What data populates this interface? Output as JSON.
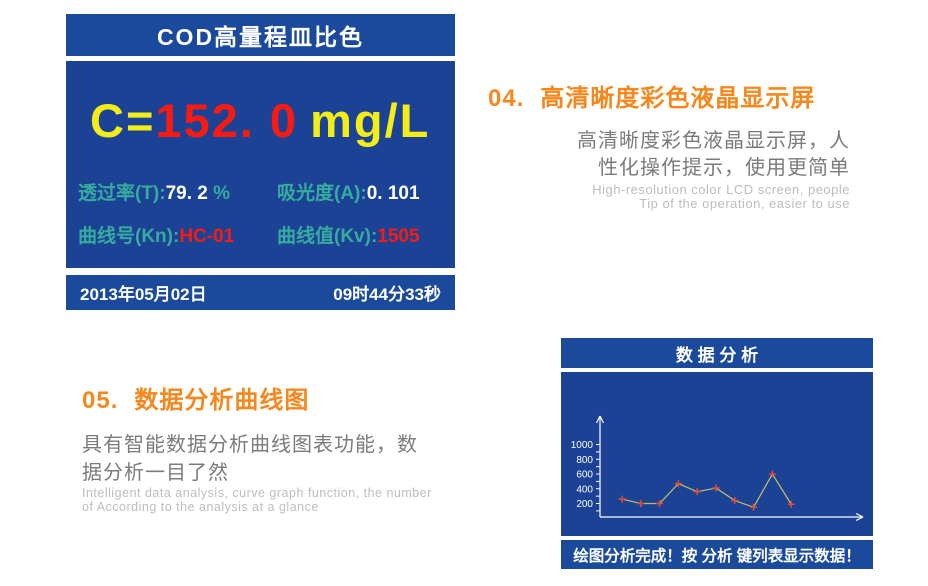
{
  "left_screen": {
    "title": "COD高量程皿比色",
    "reading": {
      "prefix": "C=",
      "value": "152. 0",
      "unit": "mg/L"
    },
    "metrics": [
      {
        "label": "透过率(T):",
        "value": "79. 2",
        "suffix": " %",
        "value_style": "white"
      },
      {
        "label": "吸光度(A):",
        "value": "0. 101",
        "value_style": "white"
      },
      {
        "label": "曲线号(Kn):",
        "value": "HC-01",
        "value_style": "red"
      },
      {
        "label": "曲线值(Kv):",
        "value": "1505",
        "value_style": "red"
      }
    ],
    "date": "2013年05月02日",
    "time": "09时44分33秒"
  },
  "feature_04": {
    "number": "04.",
    "title": "高清晰度彩色液晶显示屏",
    "body_line1": "高清晰度彩色液晶显示屏，人",
    "body_line2": "性化操作提示，使用更简单",
    "en_line1": "High-resolution color LCD screen, people",
    "en_line2": "Tip of the operation, easier to use"
  },
  "feature_05": {
    "number": "05.",
    "title": "数据分析曲线图",
    "body_line1": "具有智能数据分析曲线图表功能，数",
    "body_line2": "据分析一目了然",
    "en_line1": "Intelligent data analysis, curve graph function, the number",
    "en_line2": "of According to the analysis at a glance"
  },
  "right_screen": {
    "title": "数 据 分 析",
    "status": "绘图分析完成！按 分析 键列表显示数据！"
  },
  "chart_data": {
    "type": "line",
    "x": [
      1,
      2,
      3,
      4,
      5,
      6,
      7,
      8,
      9,
      10
    ],
    "values": [
      260,
      200,
      200,
      470,
      360,
      410,
      240,
      150,
      600,
      190
    ],
    "yticks": [
      200,
      400,
      600,
      800,
      1000
    ],
    "minor_tick_step": 100,
    "ylim": [
      0,
      1100
    ],
    "title": "数 据 分 析",
    "xlabel": "",
    "ylabel": "",
    "grid": false,
    "legend": false,
    "line_color": "#b6ba68",
    "marker": "+",
    "marker_color": "#e24a3b",
    "axis_color": "#ffffff"
  },
  "colors": {
    "screen_blue": "#1b4a9d",
    "screen_blue_dark": "#1c4296",
    "reading_yellow": "#f2ee15",
    "reading_red": "#fb1a10",
    "label_teal": "#36ac9e",
    "value_red": "#fb1a10",
    "feature_orange": "#f6871d",
    "body_gray": "#7b7b7b",
    "en_gray": "#bdbdbd"
  }
}
